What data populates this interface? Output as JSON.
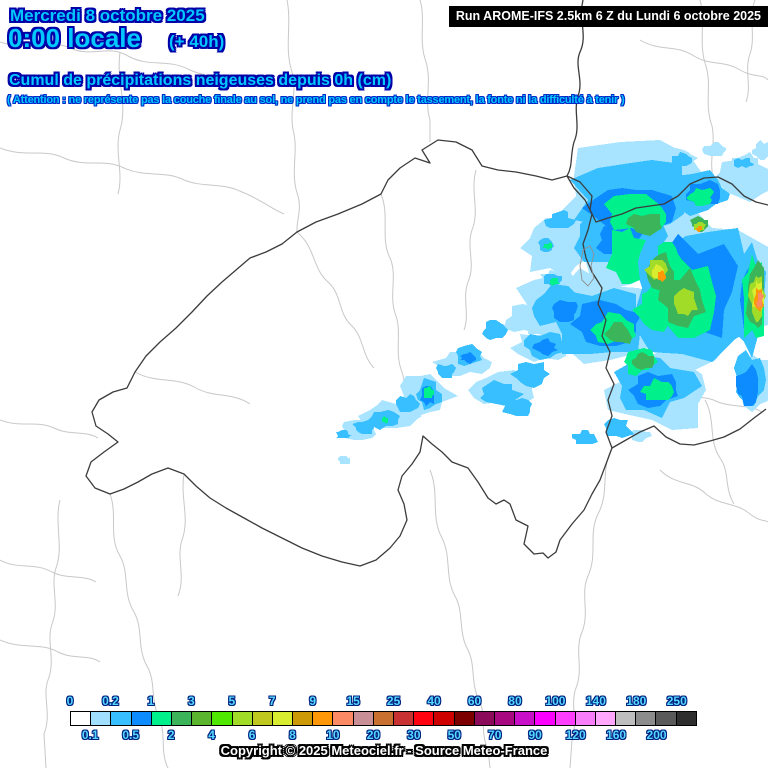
{
  "header": {
    "date": "Mercredi 8 octobre 2025",
    "time": "0:00 locale",
    "offset": "(+ 40h)",
    "run_info": "Run AROME-IFS 2.5km 6 Z du Lundi 6 octobre 2025",
    "title": "Cumul de précipitations neigeuses depuis 0h (cm)",
    "warning": "( Attention : ne représente pas la couche finale au sol, ne prend pas en compte le tassement, la fonte ni la difficulté à tenir )"
  },
  "footer": {
    "copyright": "Copyright © 2025 Meteociel.fr - Source Meteo-France"
  },
  "legend": {
    "unit": "cm",
    "boundaries": [
      "0",
      "0.1",
      "0.2",
      "0.5",
      "1",
      "2",
      "3",
      "4",
      "5",
      "6",
      "7",
      "8",
      "9",
      "10",
      "15",
      "20",
      "25",
      "30",
      "40",
      "50",
      "60",
      "70",
      "80",
      "90",
      "100",
      "120",
      "140",
      "160",
      "180",
      "200",
      "250"
    ],
    "cell_colors": [
      "#FFFFFF",
      "#A0DFFF",
      "#38BFFF",
      "#0C8CFF",
      "#00F08C",
      "#3CB45A",
      "#5CB52E",
      "#50E800",
      "#A0DC28",
      "#BEC81E",
      "#D8EC30",
      "#CC9A06",
      "#FF9808",
      "#FC8A64",
      "#C98F96",
      "#C87030",
      "#C83232",
      "#FF0410",
      "#CE0000",
      "#7C0000",
      "#8C0A5A",
      "#A80880",
      "#C810C8",
      "#FB00FF",
      "#FF3DFF",
      "#F87DF8",
      "#FFA6FF",
      "#BEBEBE",
      "#8C8C8C",
      "#5A5A5A",
      "#2E2E2E"
    ]
  },
  "colors": {
    "header_fill": "#00C8FF",
    "header_outline": "#0000A8",
    "warning_outline": "#0028C8",
    "border_country": "#3C3C3C",
    "border_region": "#C8C8C8"
  },
  "precipitation": {
    "palette": {
      "1": "#A8E4FF",
      "2": "#38BFFF",
      "3": "#0C8CFF",
      "4": "#00F08C",
      "5": "#3CB45A",
      "6": "#A0DC28",
      "7": "#D8EC30",
      "8": "#FF9808",
      "9": "#FC8A64"
    },
    "blobs": [
      [
        1,
        640,
        195,
        78,
        48
      ],
      [
        1,
        700,
        285,
        70,
        78
      ],
      [
        1,
        598,
        322,
        62,
        42
      ],
      [
        1,
        556,
        248,
        34,
        26
      ],
      [
        1,
        660,
        390,
        48,
        38
      ],
      [
        1,
        742,
        178,
        30,
        20
      ],
      [
        1,
        620,
        240,
        44,
        40
      ],
      [
        1,
        560,
        305,
        40,
        30
      ],
      [
        1,
        505,
        390,
        30,
        16
      ],
      [
        1,
        465,
        362,
        26,
        14
      ],
      [
        1,
        425,
        395,
        26,
        20
      ],
      [
        1,
        390,
        415,
        26,
        12
      ],
      [
        1,
        358,
        430,
        18,
        9
      ],
      [
        1,
        528,
        320,
        22,
        14
      ],
      [
        1,
        540,
        348,
        24,
        14
      ],
      [
        1,
        600,
        168,
        12,
        8
      ],
      [
        1,
        680,
        158,
        14,
        9
      ],
      [
        1,
        716,
        150,
        11,
        7
      ],
      [
        1,
        745,
        162,
        12,
        7
      ],
      [
        1,
        545,
        244,
        10,
        8
      ],
      [
        1,
        553,
        280,
        11,
        9
      ],
      [
        1,
        497,
        331,
        9,
        7
      ],
      [
        1,
        640,
        435,
        10,
        6
      ],
      [
        1,
        697,
        345,
        8,
        5
      ],
      [
        1,
        756,
        382,
        16,
        26
      ],
      [
        1,
        345,
        460,
        6,
        4
      ],
      [
        1,
        762,
        150,
        9,
        8
      ],
      [
        2,
        638,
        200,
        60,
        38
      ],
      [
        2,
        696,
        288,
        58,
        64
      ],
      [
        2,
        602,
        322,
        50,
        32
      ],
      [
        2,
        652,
        386,
        38,
        28
      ],
      [
        2,
        618,
        235,
        44,
        28
      ],
      [
        2,
        700,
        193,
        32,
        18
      ],
      [
        2,
        560,
        308,
        28,
        20
      ],
      [
        2,
        545,
        346,
        20,
        12
      ],
      [
        2,
        530,
        374,
        18,
        12
      ],
      [
        2,
        500,
        393,
        18,
        10
      ],
      [
        2,
        560,
        220,
        12,
        9
      ],
      [
        2,
        546,
        245,
        8,
        6
      ],
      [
        2,
        553,
        280,
        8,
        7
      ],
      [
        2,
        428,
        394,
        13,
        14
      ],
      [
        2,
        407,
        404,
        10,
        8
      ],
      [
        2,
        384,
        420,
        14,
        9
      ],
      [
        2,
        364,
        428,
        11,
        7
      ],
      [
        2,
        344,
        435,
        7,
        4
      ],
      [
        2,
        494,
        330,
        11,
        8
      ],
      [
        2,
        468,
        356,
        13,
        9
      ],
      [
        2,
        445,
        371,
        9,
        7
      ],
      [
        2,
        518,
        408,
        14,
        9
      ],
      [
        2,
        618,
        428,
        13,
        9
      ],
      [
        2,
        585,
        438,
        11,
        7
      ],
      [
        2,
        683,
        160,
        10,
        6
      ],
      [
        2,
        744,
        163,
        9,
        5
      ],
      [
        2,
        750,
        380,
        15,
        24
      ],
      [
        2,
        748,
        298,
        16,
        50
      ],
      [
        3,
        630,
        208,
        38,
        24
      ],
      [
        3,
        690,
        292,
        42,
        48
      ],
      [
        3,
        608,
        324,
        32,
        20
      ],
      [
        3,
        654,
        389,
        24,
        16
      ],
      [
        3,
        748,
        385,
        11,
        17
      ],
      [
        3,
        704,
        194,
        18,
        11
      ],
      [
        3,
        428,
        396,
        7,
        9
      ],
      [
        3,
        468,
        358,
        7,
        5
      ],
      [
        3,
        545,
        347,
        11,
        7
      ],
      [
        3,
        564,
        311,
        14,
        9
      ],
      [
        3,
        620,
        240,
        22,
        14
      ],
      [
        3,
        752,
        300,
        10,
        34
      ],
      [
        3,
        600,
        330,
        14,
        10
      ],
      [
        4,
        638,
        214,
        30,
        17
      ],
      [
        4,
        686,
        296,
        32,
        36
      ],
      [
        4,
        614,
        330,
        22,
        14
      ],
      [
        4,
        658,
        391,
        15,
        10
      ],
      [
        4,
        700,
        197,
        13,
        8
      ],
      [
        4,
        626,
        254,
        18,
        26
      ],
      [
        4,
        658,
        310,
        22,
        18
      ],
      [
        4,
        428,
        393,
        5,
        5
      ],
      [
        4,
        385,
        420,
        4,
        3
      ],
      [
        4,
        547,
        246,
        4,
        3
      ],
      [
        4,
        554,
        281,
        5,
        4
      ],
      [
        4,
        754,
        298,
        12,
        40
      ],
      [
        4,
        640,
        362,
        16,
        12
      ],
      [
        4,
        668,
        260,
        14,
        18
      ],
      [
        5,
        646,
        224,
        18,
        11
      ],
      [
        5,
        683,
        300,
        22,
        26
      ],
      [
        5,
        618,
        334,
        14,
        9
      ],
      [
        5,
        662,
        272,
        12,
        16
      ],
      [
        5,
        700,
        224,
        8,
        6
      ],
      [
        5,
        756,
        298,
        9,
        30
      ],
      [
        5,
        644,
        360,
        10,
        8
      ],
      [
        6,
        656,
        270,
        9,
        11
      ],
      [
        6,
        757,
        296,
        7,
        22
      ],
      [
        6,
        700,
        227,
        5,
        4
      ],
      [
        6,
        686,
        303,
        10,
        12
      ],
      [
        7,
        658,
        273,
        6,
        7
      ],
      [
        7,
        758,
        297,
        5,
        16
      ],
      [
        8,
        661,
        276,
        4,
        5
      ],
      [
        8,
        699,
        229,
        3,
        3
      ],
      [
        8,
        759,
        299,
        4,
        12
      ],
      [
        9,
        760,
        300,
        3,
        8
      ]
    ]
  }
}
